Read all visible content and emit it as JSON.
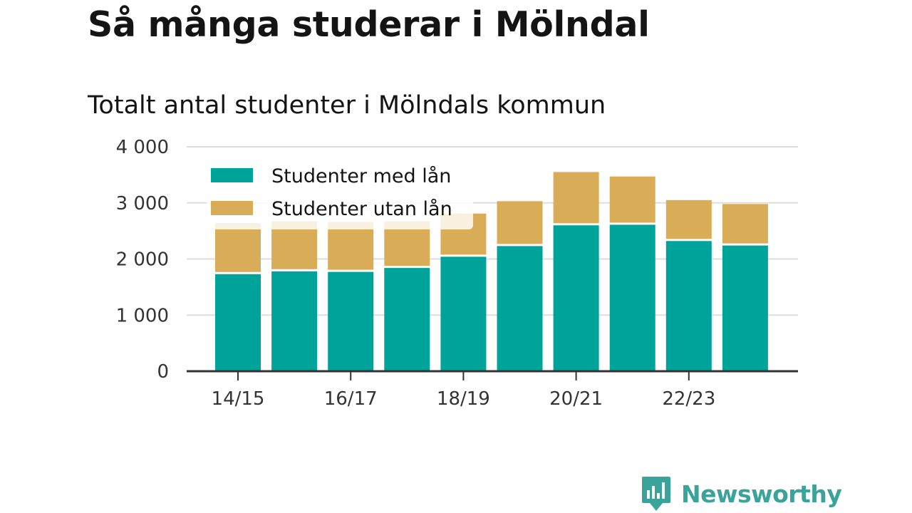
{
  "header": {
    "title": "Så många studerar i Mölndal",
    "subtitle": "Totalt antal studenter i Mölndals kommun"
  },
  "brand": {
    "name": "Newsworthy",
    "color": "#3aa39a"
  },
  "chart_data": {
    "type": "bar",
    "stacked": true,
    "title": "Totalt antal studenter i Mölndals kommun",
    "xlabel": "",
    "ylabel": "",
    "ylim": [
      0,
      4000
    ],
    "yticks": [
      0,
      1000,
      2000,
      3000,
      4000
    ],
    "ytick_labels": [
      "0",
      "1 000",
      "2 000",
      "3 000",
      "4 000"
    ],
    "categories": [
      "14/15",
      "15/16",
      "16/17",
      "17/18",
      "18/19",
      "19/20",
      "20/21",
      "21/22",
      "22/23",
      "23/24"
    ],
    "xtick_labels": [
      {
        "index": 0,
        "label": "14/15"
      },
      {
        "index": 2,
        "label": "16/17"
      },
      {
        "index": 4,
        "label": "18/19"
      },
      {
        "index": 6,
        "label": "20/21"
      },
      {
        "index": 8,
        "label": "22/23"
      }
    ],
    "series": [
      {
        "name": "Studenter med lån",
        "color": "#00a399",
        "values": [
          1730,
          1780,
          1770,
          1840,
          2040,
          2230,
          2600,
          2610,
          2320,
          2240
        ]
      },
      {
        "name": "Studenter utan lån",
        "color": "#d9ac57",
        "values": [
          910,
          890,
          890,
          830,
          770,
          800,
          950,
          860,
          730,
          740
        ]
      }
    ],
    "grid": true,
    "legend": "top-left"
  }
}
